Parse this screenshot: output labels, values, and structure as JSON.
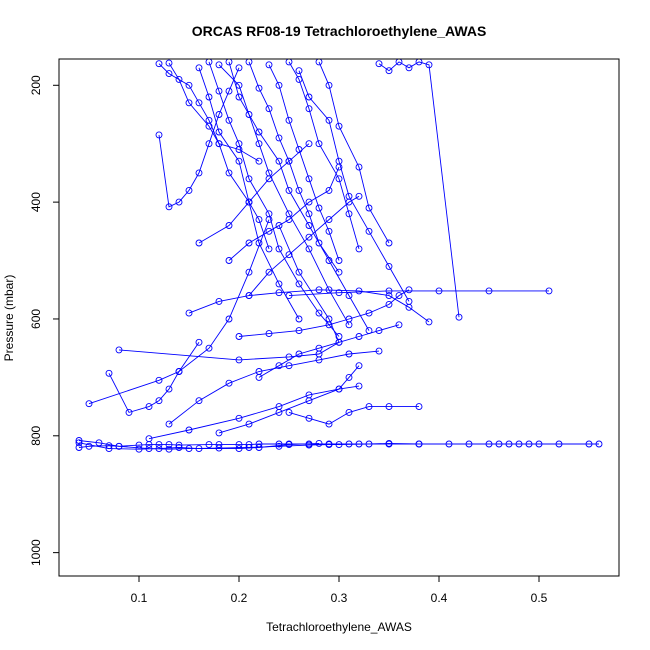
{
  "chart_data": {
    "type": "scatter",
    "title": "ORCAS RF08-19 Tetrachloroethylene_AWAS",
    "xlabel": "Tetrachloroethylene_AWAS",
    "ylabel": "Pressure (mbar)",
    "xlim": [
      0.02,
      0.58
    ],
    "ylim": [
      1040,
      155
    ],
    "y_reversed": true,
    "xticks": [
      0.1,
      0.2,
      0.3,
      0.4,
      0.5
    ],
    "xtick_labels": [
      "0.1",
      "0.2",
      "0.3",
      "0.4",
      "0.5"
    ],
    "yticks": [
      200,
      400,
      600,
      800,
      1000
    ],
    "ytick_labels": [
      "200",
      "400",
      "600",
      "800",
      "1000"
    ],
    "series_color": "#0000ff",
    "marker": "open-circle",
    "connected": true,
    "grid": false,
    "legend": "none",
    "series": [
      {
        "x": [
          0.04,
          0.05,
          0.07,
          0.08,
          0.1,
          0.11,
          0.12,
          0.13,
          0.14,
          0.17,
          0.18,
          0.2,
          0.21,
          0.22,
          0.24,
          0.25,
          0.27,
          0.29,
          0.31,
          0.32,
          0.35,
          0.38,
          0.41,
          0.43,
          0.45,
          0.46,
          0.47,
          0.48,
          0.49,
          0.5,
          0.52,
          0.55,
          0.56
        ],
        "y": [
          820,
          818,
          817,
          818,
          816,
          815,
          815,
          815,
          816,
          815,
          815,
          815,
          815,
          814,
          814,
          814,
          814,
          814,
          814,
          814,
          814,
          814,
          814,
          814,
          814,
          814,
          814,
          814,
          814,
          814,
          814,
          814,
          814
        ]
      },
      {
        "x": [
          0.04,
          0.06,
          0.08,
          0.11,
          0.13,
          0.15,
          0.18,
          0.21,
          0.24,
          0.27,
          0.29,
          0.3,
          0.33,
          0.35,
          0.38
        ],
        "y": [
          808,
          812,
          818,
          822,
          823,
          822,
          821,
          820,
          818,
          816,
          815,
          815,
          814,
          813,
          814
        ]
      },
      {
        "x": [
          0.04,
          0.07,
          0.1,
          0.12,
          0.14,
          0.16,
          0.2,
          0.22,
          0.25,
          0.28
        ],
        "y": [
          812,
          822,
          823,
          822,
          820,
          822,
          822,
          820,
          815,
          813
        ]
      },
      {
        "x": [
          0.05,
          0.12,
          0.14,
          0.17,
          0.19,
          0.21,
          0.23
        ],
        "y": [
          745,
          705,
          690,
          650,
          600,
          520,
          430
        ]
      },
      {
        "x": [
          0.07,
          0.09,
          0.11,
          0.12,
          0.13,
          0.14,
          0.16
        ],
        "y": [
          693,
          760,
          750,
          740,
          720,
          690,
          640
        ]
      },
      {
        "x": [
          0.08,
          0.2,
          0.25,
          0.28,
          0.3,
          0.29,
          0.26,
          0.24
        ],
        "y": [
          653,
          670,
          665,
          660,
          640,
          600,
          520,
          440
        ]
      },
      {
        "x": [
          0.12,
          0.13,
          0.14,
          0.15,
          0.16,
          0.17,
          0.18,
          0.19,
          0.2
        ],
        "y": [
          285,
          408,
          400,
          380,
          350,
          300,
          250,
          210,
          170
        ]
      },
      {
        "x": [
          0.12,
          0.13,
          0.15,
          0.16,
          0.17,
          0.18,
          0.19,
          0.21,
          0.22,
          0.23
        ],
        "y": [
          163,
          180,
          200,
          230,
          260,
          300,
          350,
          400,
          430,
          480
        ]
      },
      {
        "x": [
          0.13,
          0.14,
          0.15,
          0.17,
          0.18,
          0.2,
          0.22
        ],
        "y": [
          162,
          190,
          230,
          270,
          300,
          310,
          330
        ]
      },
      {
        "x": [
          0.16,
          0.17,
          0.18,
          0.2,
          0.21,
          0.22,
          0.24,
          0.26
        ],
        "y": [
          170,
          220,
          280,
          330,
          400,
          470,
          540,
          600
        ]
      },
      {
        "x": [
          0.17,
          0.18,
          0.19,
          0.2,
          0.21,
          0.23,
          0.24,
          0.26,
          0.28,
          0.3
        ],
        "y": [
          160,
          210,
          260,
          300,
          360,
          420,
          480,
          540,
          590,
          630
        ]
      },
      {
        "x": [
          0.18,
          0.2,
          0.21,
          0.22,
          0.23,
          0.25,
          0.27,
          0.29,
          0.31
        ],
        "y": [
          165,
          200,
          250,
          300,
          350,
          420,
          480,
          550,
          610
        ]
      },
      {
        "x": [
          0.19,
          0.2,
          0.22,
          0.24,
          0.25,
          0.27,
          0.29,
          0.31,
          0.33
        ],
        "y": [
          160,
          220,
          280,
          330,
          380,
          440,
          500,
          560,
          620
        ]
      },
      {
        "x": [
          0.21,
          0.22,
          0.23,
          0.24,
          0.25,
          0.26,
          0.27,
          0.28,
          0.3
        ],
        "y": [
          160,
          205,
          240,
          290,
          330,
          380,
          420,
          470,
          520
        ]
      },
      {
        "x": [
          0.23,
          0.24,
          0.25,
          0.26,
          0.27,
          0.28,
          0.29,
          0.3
        ],
        "y": [
          165,
          200,
          260,
          310,
          360,
          410,
          450,
          500
        ]
      },
      {
        "x": [
          0.25,
          0.26,
          0.27,
          0.28,
          0.3,
          0.31,
          0.32
        ],
        "y": [
          160,
          190,
          240,
          300,
          360,
          420,
          480
        ]
      },
      {
        "x": [
          0.26,
          0.27,
          0.29,
          0.3,
          0.31,
          0.33,
          0.35,
          0.37
        ],
        "y": [
          175,
          220,
          260,
          330,
          390,
          450,
          510,
          570
        ]
      },
      {
        "x": [
          0.28,
          0.29,
          0.3,
          0.32,
          0.33,
          0.35
        ],
        "y": [
          160,
          200,
          270,
          340,
          410,
          470
        ]
      },
      {
        "x": [
          0.34,
          0.35,
          0.36,
          0.37,
          0.38,
          0.39,
          0.42
        ],
        "y": [
          163,
          175,
          160,
          170,
          160,
          165,
          597
        ]
      },
      {
        "x": [
          0.15,
          0.18,
          0.21,
          0.24,
          0.28,
          0.32,
          0.35,
          0.37,
          0.39
        ],
        "y": [
          590,
          570,
          560,
          555,
          550,
          552,
          560,
          580,
          605
        ]
      },
      {
        "x": [
          0.25,
          0.3,
          0.35,
          0.4,
          0.45,
          0.51
        ],
        "y": [
          560,
          555,
          552,
          552,
          552,
          552
        ]
      },
      {
        "x": [
          0.2,
          0.23,
          0.26,
          0.29,
          0.31,
          0.33,
          0.35,
          0.36,
          0.37
        ],
        "y": [
          630,
          625,
          620,
          610,
          600,
          590,
          575,
          560,
          550
        ]
      },
      {
        "x": [
          0.22,
          0.24,
          0.26,
          0.28,
          0.3,
          0.32,
          0.34,
          0.36
        ],
        "y": [
          700,
          680,
          660,
          650,
          640,
          630,
          620,
          610
        ]
      },
      {
        "x": [
          0.13,
          0.16,
          0.19,
          0.22,
          0.25,
          0.28,
          0.31,
          0.34
        ],
        "y": [
          780,
          740,
          710,
          690,
          680,
          670,
          660,
          655
        ]
      },
      {
        "x": [
          0.11,
          0.15,
          0.2,
          0.24,
          0.27,
          0.3,
          0.32
        ],
        "y": [
          805,
          790,
          770,
          750,
          730,
          720,
          715
        ]
      },
      {
        "x": [
          0.25,
          0.27,
          0.29,
          0.31,
          0.33,
          0.35,
          0.38
        ],
        "y": [
          760,
          770,
          780,
          760,
          750,
          750,
          750
        ]
      },
      {
        "x": [
          0.18,
          0.21,
          0.24,
          0.27,
          0.3,
          0.31,
          0.32
        ],
        "y": [
          795,
          780,
          760,
          740,
          720,
          700,
          680
        ]
      },
      {
        "x": [
          0.16,
          0.19,
          0.21,
          0.23,
          0.25,
          0.27
        ],
        "y": [
          470,
          440,
          400,
          360,
          330,
          300
        ]
      },
      {
        "x": [
          0.19,
          0.21,
          0.23,
          0.25,
          0.27,
          0.29,
          0.3
        ],
        "y": [
          500,
          470,
          450,
          430,
          400,
          380,
          340
        ]
      },
      {
        "x": [
          0.21,
          0.23,
          0.25,
          0.27,
          0.29,
          0.31,
          0.32
        ],
        "y": [
          560,
          520,
          490,
          460,
          430,
          400,
          390
        ]
      }
    ]
  }
}
